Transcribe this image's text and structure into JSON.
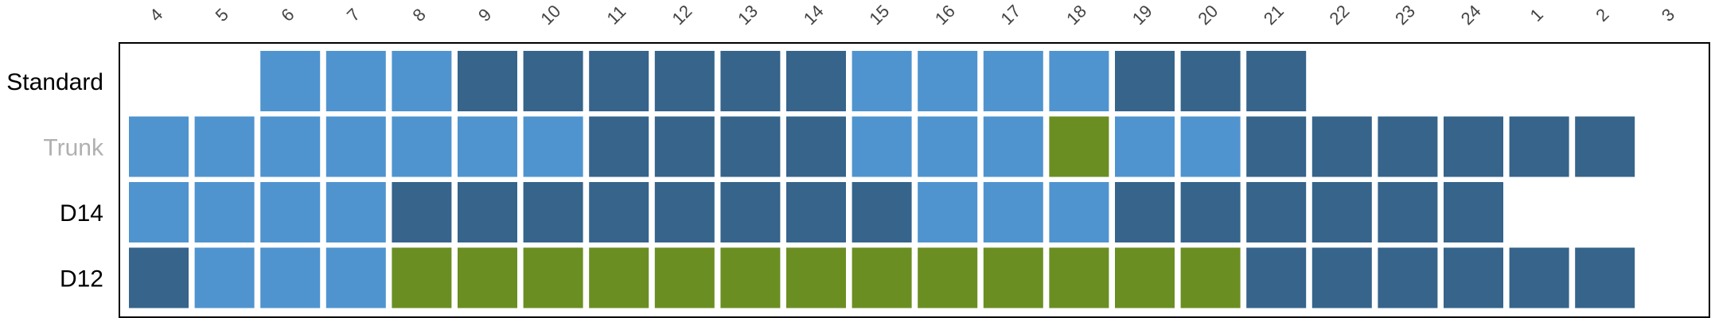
{
  "chart_data": {
    "type": "heatmap",
    "x_labels": [
      "4",
      "5",
      "6",
      "7",
      "8",
      "9",
      "10",
      "11",
      "12",
      "13",
      "14",
      "15",
      "16",
      "17",
      "18",
      "19",
      "20",
      "21",
      "22",
      "23",
      "24",
      "1",
      "2",
      "3"
    ],
    "rows": [
      {
        "label": "Standard",
        "label_color": "#000000",
        "cells": [
          null,
          null,
          "L",
          "L",
          "L",
          "D",
          "D",
          "D",
          "D",
          "D",
          "D",
          "L",
          "L",
          "L",
          "L",
          "D",
          "D",
          "D",
          null,
          null,
          null,
          null,
          null,
          null
        ]
      },
      {
        "label": "Trunk",
        "label_color": "#b0b0b0",
        "cells": [
          "L",
          "L",
          "L",
          "L",
          "L",
          "L",
          "L",
          "D",
          "D",
          "D",
          "D",
          "L",
          "L",
          "L",
          "G",
          "L",
          "L",
          "D",
          "D",
          "D",
          "D",
          "D",
          "D",
          null
        ]
      },
      {
        "label": "D14",
        "label_color": "#000000",
        "cells": [
          "L",
          "L",
          "L",
          "L",
          "D",
          "D",
          "D",
          "D",
          "D",
          "D",
          "D",
          "D",
          "L",
          "L",
          "L",
          "D",
          "D",
          "D",
          "D",
          "D",
          "D",
          null,
          null,
          null
        ]
      },
      {
        "label": "D12",
        "label_color": "#000000",
        "cells": [
          "D",
          "L",
          "L",
          "L",
          "G",
          "G",
          "G",
          "G",
          "G",
          "G",
          "G",
          "G",
          "G",
          "G",
          "G",
          "G",
          "G",
          "D",
          "D",
          "D",
          "D",
          "D",
          "D",
          null
        ]
      }
    ],
    "legend": {
      "L": "light-blue",
      "D": "dark-blue",
      "G": "olive-green"
    },
    "colors": {
      "L": "#4f94cf",
      "D": "#36648b",
      "G": "#6b8e23",
      "frame": "#000000",
      "background": "#ffffff"
    },
    "grid": false
  }
}
